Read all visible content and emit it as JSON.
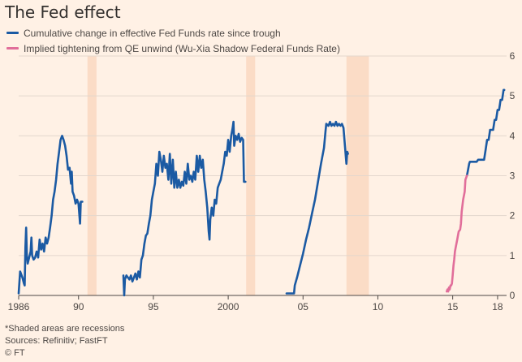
{
  "chart_data": {
    "type": "line",
    "title": "The Fed effect",
    "xlabel": "",
    "ylabel": "",
    "xlim": [
      1986,
      2018.6
    ],
    "ylim": [
      0,
      6
    ],
    "x_ticks": [
      {
        "x": 1986,
        "label": "1986"
      },
      {
        "x": 1990,
        "label": "90"
      },
      {
        "x": 1995,
        "label": "95"
      },
      {
        "x": 2000,
        "label": "2000"
      },
      {
        "x": 2005,
        "label": "05"
      },
      {
        "x": 2010,
        "label": "10"
      },
      {
        "x": 2015,
        "label": "15"
      },
      {
        "x": 2018,
        "label": "18"
      }
    ],
    "y_ticks": [
      0,
      1,
      2,
      3,
      4,
      5,
      6
    ],
    "grid": true,
    "legend_position": "top-left",
    "recessions": [
      [
        1990.6,
        1991.2
      ],
      [
        2001.2,
        2001.8
      ],
      [
        2007.9,
        2009.4
      ]
    ],
    "series": [
      {
        "name": "Cumulative change in effective Fed Funds rate since trough",
        "color": "#1b5aa3",
        "segments": [
          [
            [
              1986.0,
              0.05
            ],
            [
              1986.1,
              0.6
            ],
            [
              1986.25,
              0.45
            ],
            [
              1986.35,
              0.3
            ],
            [
              1986.4,
              0.25
            ],
            [
              1986.45,
              1.2
            ],
            [
              1986.5,
              1.7
            ],
            [
              1986.55,
              1.0
            ],
            [
              1986.6,
              0.8
            ],
            [
              1986.7,
              0.95
            ],
            [
              1986.8,
              1.1
            ],
            [
              1986.85,
              1.45
            ],
            [
              1986.9,
              1.0
            ],
            [
              1987.0,
              0.9
            ],
            [
              1987.1,
              0.95
            ],
            [
              1987.2,
              1.1
            ],
            [
              1987.3,
              0.95
            ],
            [
              1987.4,
              1.4
            ],
            [
              1987.5,
              1.15
            ],
            [
              1987.6,
              1.3
            ],
            [
              1987.7,
              1.1
            ],
            [
              1987.8,
              1.45
            ],
            [
              1987.9,
              1.3
            ],
            [
              1988.0,
              1.45
            ],
            [
              1988.1,
              1.7
            ],
            [
              1988.2,
              2.0
            ],
            [
              1988.3,
              2.4
            ],
            [
              1988.4,
              2.6
            ],
            [
              1988.5,
              2.9
            ],
            [
              1988.6,
              3.3
            ],
            [
              1988.7,
              3.6
            ],
            [
              1988.8,
              3.9
            ],
            [
              1988.9,
              4.0
            ],
            [
              1989.0,
              3.9
            ],
            [
              1989.1,
              3.75
            ],
            [
              1989.2,
              3.5
            ],
            [
              1989.3,
              3.15
            ],
            [
              1989.4,
              3.2
            ],
            [
              1989.5,
              2.8
            ],
            [
              1989.55,
              3.1
            ],
            [
              1989.6,
              2.6
            ],
            [
              1989.7,
              2.5
            ],
            [
              1989.8,
              2.3
            ],
            [
              1989.9,
              2.4
            ],
            [
              1990.0,
              2.3
            ],
            [
              1990.1,
              1.8
            ],
            [
              1990.15,
              2.35
            ],
            [
              1990.25,
              2.35
            ]
          ],
          [
            [
              1993.0,
              0.5
            ],
            [
              1993.05,
              0.0
            ],
            [
              1993.1,
              0.4
            ],
            [
              1993.2,
              0.5
            ],
            [
              1993.3,
              0.45
            ],
            [
              1993.4,
              0.4
            ],
            [
              1993.5,
              0.5
            ],
            [
              1993.6,
              0.35
            ],
            [
              1993.7,
              0.45
            ],
            [
              1993.8,
              0.55
            ],
            [
              1993.9,
              0.4
            ],
            [
              1994.0,
              0.6
            ],
            [
              1994.1,
              0.45
            ],
            [
              1994.2,
              0.9
            ],
            [
              1994.3,
              1.0
            ],
            [
              1994.4,
              1.3
            ],
            [
              1994.5,
              1.5
            ],
            [
              1994.6,
              1.55
            ],
            [
              1994.7,
              1.8
            ],
            [
              1994.8,
              2.0
            ],
            [
              1994.9,
              2.4
            ],
            [
              1995.0,
              2.6
            ],
            [
              1995.1,
              2.8
            ],
            [
              1995.2,
              3.3
            ],
            [
              1995.3,
              3.0
            ],
            [
              1995.4,
              3.6
            ],
            [
              1995.5,
              3.4
            ],
            [
              1995.6,
              3.1
            ],
            [
              1995.7,
              3.5
            ],
            [
              1995.8,
              3.2
            ],
            [
              1995.9,
              3.3
            ],
            [
              1996.0,
              2.9
            ],
            [
              1996.1,
              3.55
            ],
            [
              1996.2,
              2.8
            ],
            [
              1996.3,
              3.4
            ],
            [
              1996.4,
              2.7
            ],
            [
              1996.5,
              3.1
            ],
            [
              1996.6,
              2.7
            ],
            [
              1996.7,
              2.9
            ],
            [
              1996.8,
              2.7
            ],
            [
              1996.9,
              2.85
            ],
            [
              1997.0,
              2.75
            ],
            [
              1997.1,
              3.1
            ],
            [
              1997.2,
              2.8
            ],
            [
              1997.3,
              3.3
            ],
            [
              1997.4,
              2.9
            ],
            [
              1997.5,
              3.0
            ],
            [
              1997.6,
              2.85
            ],
            [
              1997.7,
              3.1
            ],
            [
              1997.8,
              2.9
            ],
            [
              1997.9,
              3.5
            ],
            [
              1998.0,
              3.1
            ],
            [
              1998.1,
              3.5
            ],
            [
              1998.2,
              3.2
            ],
            [
              1998.3,
              3.4
            ],
            [
              1998.4,
              2.9
            ],
            [
              1998.5,
              2.6
            ],
            [
              1998.6,
              2.2
            ],
            [
              1998.7,
              1.6
            ],
            [
              1998.75,
              1.4
            ],
            [
              1998.8,
              1.9
            ],
            [
              1998.9,
              2.2
            ],
            [
              1999.0,
              2.0
            ],
            [
              1999.1,
              2.4
            ],
            [
              1999.2,
              2.3
            ],
            [
              1999.3,
              2.7
            ],
            [
              1999.4,
              2.8
            ],
            [
              1999.5,
              2.9
            ],
            [
              1999.6,
              3.1
            ],
            [
              1999.7,
              3.3
            ],
            [
              1999.8,
              3.6
            ],
            [
              1999.9,
              3.5
            ],
            [
              2000.0,
              3.9
            ],
            [
              2000.1,
              3.6
            ],
            [
              2000.2,
              4.0
            ],
            [
              2000.3,
              4.2
            ],
            [
              2000.35,
              4.35
            ],
            [
              2000.4,
              3.75
            ],
            [
              2000.5,
              4.0
            ],
            [
              2000.6,
              3.9
            ],
            [
              2000.7,
              4.05
            ],
            [
              2000.8,
              3.85
            ],
            [
              2000.9,
              3.95
            ],
            [
              2001.0,
              3.9
            ],
            [
              2001.05,
              2.85
            ],
            [
              2001.15,
              2.85
            ]
          ],
          [
            [
              2003.9,
              0.05
            ],
            [
              2004.2,
              0.05
            ],
            [
              2004.4,
              0.05
            ],
            [
              2004.45,
              0.25
            ],
            [
              2004.6,
              0.45
            ],
            [
              2004.8,
              0.75
            ],
            [
              2005.0,
              1.05
            ],
            [
              2005.2,
              1.4
            ],
            [
              2005.4,
              1.7
            ],
            [
              2005.6,
              2.05
            ],
            [
              2005.8,
              2.4
            ],
            [
              2006.0,
              2.85
            ],
            [
              2006.2,
              3.3
            ],
            [
              2006.4,
              3.7
            ],
            [
              2006.5,
              4.1
            ],
            [
              2006.55,
              4.3
            ],
            [
              2006.7,
              4.25
            ],
            [
              2006.8,
              4.35
            ],
            [
              2006.9,
              4.25
            ],
            [
              2007.0,
              4.3
            ],
            [
              2007.1,
              4.25
            ],
            [
              2007.2,
              4.35
            ],
            [
              2007.3,
              4.25
            ],
            [
              2007.4,
              4.3
            ],
            [
              2007.5,
              4.25
            ],
            [
              2007.6,
              4.3
            ],
            [
              2007.7,
              4.2
            ],
            [
              2007.8,
              3.75
            ],
            [
              2007.9,
              3.3
            ],
            [
              2007.95,
              3.6
            ],
            [
              2008.0,
              3.55
            ]
          ],
          [
            [
              2015.95,
              3.0
            ],
            [
              2016.0,
              3.1
            ],
            [
              2016.05,
              3.2
            ],
            [
              2016.1,
              3.3
            ],
            [
              2016.15,
              3.35
            ],
            [
              2016.3,
              3.35
            ],
            [
              2016.5,
              3.35
            ],
            [
              2016.6,
              3.35
            ],
            [
              2016.7,
              3.4
            ],
            [
              2017.0,
              3.4
            ],
            [
              2017.1,
              3.4
            ],
            [
              2017.2,
              3.65
            ],
            [
              2017.3,
              3.9
            ],
            [
              2017.4,
              3.9
            ],
            [
              2017.5,
              4.15
            ],
            [
              2017.6,
              4.15
            ],
            [
              2017.7,
              4.15
            ],
            [
              2017.8,
              4.4
            ],
            [
              2017.9,
              4.4
            ],
            [
              2018.0,
              4.65
            ],
            [
              2018.1,
              4.65
            ],
            [
              2018.2,
              4.9
            ],
            [
              2018.3,
              4.9
            ],
            [
              2018.4,
              5.15
            ],
            [
              2018.45,
              5.15
            ]
          ]
        ]
      },
      {
        "name": "Implied tightening from QE unwind (Wu-Xia Shadow Federal Funds Rate)",
        "color": "#e16e9a",
        "segments": [
          [
            [
              2014.6,
              0.1
            ],
            [
              2014.65,
              0.15
            ],
            [
              2014.7,
              0.1
            ],
            [
              2014.75,
              0.2
            ],
            [
              2014.8,
              0.15
            ],
            [
              2014.85,
              0.25
            ],
            [
              2014.9,
              0.25
            ],
            [
              2014.95,
              0.3
            ],
            [
              2015.0,
              0.5
            ],
            [
              2015.05,
              0.75
            ],
            [
              2015.1,
              0.9
            ],
            [
              2015.15,
              1.1
            ],
            [
              2015.2,
              1.2
            ],
            [
              2015.3,
              1.4
            ],
            [
              2015.4,
              1.6
            ],
            [
              2015.5,
              1.65
            ],
            [
              2015.55,
              1.8
            ],
            [
              2015.6,
              2.1
            ],
            [
              2015.7,
              2.4
            ],
            [
              2015.8,
              2.6
            ],
            [
              2015.85,
              2.9
            ],
            [
              2015.95,
              3.0
            ]
          ]
        ]
      }
    ]
  },
  "legend": [
    {
      "label": "Cumulative change in effective Fed Funds rate since trough",
      "color": "#1b5aa3"
    },
    {
      "label": "Implied tightening from QE unwind (Wu-Xia Shadow Federal Funds Rate)",
      "color": "#e16e9a"
    }
  ],
  "notes": {
    "shading": "*Shaded areas are recessions",
    "sources": "Sources: Refinitiv; FastFT",
    "copyright": "© FT"
  },
  "colors": {
    "background": "#fff1e5",
    "grid": "#e3d7cd",
    "recession": "#fbdcc6",
    "axis": "#4d4845"
  }
}
